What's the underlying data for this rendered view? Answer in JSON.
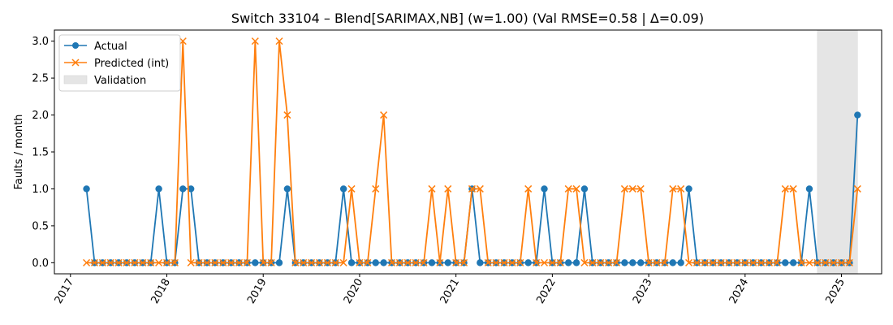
{
  "chart_data": {
    "type": "line",
    "title": "Switch 33104 – Blend[SARIMAX,NB] (w=1.00) (Val RMSE=0.58 | Δ=0.09)",
    "xlabel": "",
    "ylabel": "Faults / month",
    "xlim": [
      "2016-11",
      "2025-06"
    ],
    "ylim": [
      -0.15,
      3.15
    ],
    "x_ticks": [
      "2017",
      "2018",
      "2019",
      "2020",
      "2021",
      "2022",
      "2023",
      "2024",
      "2025"
    ],
    "y_ticks": [
      "0.0",
      "0.5",
      "1.0",
      "1.5",
      "2.0",
      "2.5",
      "3.0"
    ],
    "grid": false,
    "legend_position": "top-left",
    "x": [
      "2017-03",
      "2017-04",
      "2017-05",
      "2017-06",
      "2017-07",
      "2017-08",
      "2017-09",
      "2017-10",
      "2017-11",
      "2017-12",
      "2018-01",
      "2018-02",
      "2018-03",
      "2018-04",
      "2018-05",
      "2018-06",
      "2018-07",
      "2018-08",
      "2018-09",
      "2018-10",
      "2018-11",
      "2018-12",
      "2019-01",
      "2019-02",
      "2019-03",
      "2019-04",
      "2019-05",
      "2019-06",
      "2019-07",
      "2019-08",
      "2019-09",
      "2019-10",
      "2019-11",
      "2019-12",
      "2020-01",
      "2020-02",
      "2020-03",
      "2020-04",
      "2020-05",
      "2020-06",
      "2020-07",
      "2020-08",
      "2020-09",
      "2020-10",
      "2020-11",
      "2020-12",
      "2021-01",
      "2021-02",
      "2021-03",
      "2021-04",
      "2021-05",
      "2021-06",
      "2021-07",
      "2021-08",
      "2021-09",
      "2021-10",
      "2021-11",
      "2021-12",
      "2022-01",
      "2022-02",
      "2022-03",
      "2022-04",
      "2022-05",
      "2022-06",
      "2022-07",
      "2022-08",
      "2022-09",
      "2022-10",
      "2022-11",
      "2022-12",
      "2023-01",
      "2023-02",
      "2023-03",
      "2023-04",
      "2023-05",
      "2023-06",
      "2023-07",
      "2023-08",
      "2023-09",
      "2023-10",
      "2023-11",
      "2023-12",
      "2024-01",
      "2024-02",
      "2024-03",
      "2024-04",
      "2024-05",
      "2024-06",
      "2024-07",
      "2024-08",
      "2024-09",
      "2024-10",
      "2024-11",
      "2024-12",
      "2025-01",
      "2025-02",
      "2025-03"
    ],
    "series": [
      {
        "name": "Actual",
        "color": "#1f77b4",
        "marker": "circle",
        "values": [
          1,
          0,
          0,
          0,
          0,
          0,
          0,
          0,
          0,
          1,
          0,
          0,
          1,
          1,
          0,
          0,
          0,
          0,
          0,
          0,
          0,
          0,
          0,
          0,
          0,
          1,
          0,
          0,
          0,
          0,
          0,
          0,
          1,
          0,
          0,
          0,
          0,
          0,
          0,
          0,
          0,
          0,
          0,
          0,
          0,
          0,
          0,
          0,
          1,
          0,
          0,
          0,
          0,
          0,
          0,
          0,
          0,
          1,
          0,
          0,
          0,
          0,
          1,
          0,
          0,
          0,
          0,
          0,
          0,
          0,
          0,
          0,
          0,
          0,
          0,
          1,
          0,
          0,
          0,
          0,
          0,
          0,
          0,
          0,
          0,
          0,
          0,
          0,
          0,
          0,
          1,
          0,
          0,
          0,
          0,
          0,
          2
        ]
      },
      {
        "name": "Predicted (int)",
        "color": "#ff7f0e",
        "marker": "x",
        "values": [
          0,
          0,
          0,
          0,
          0,
          0,
          0,
          0,
          0,
          0,
          0,
          0,
          3,
          0,
          0,
          0,
          0,
          0,
          0,
          0,
          0,
          3,
          0,
          0,
          3,
          2,
          0,
          0,
          0,
          0,
          0,
          0,
          0,
          1,
          0,
          0,
          1,
          2,
          0,
          0,
          0,
          0,
          0,
          1,
          0,
          1,
          0,
          0,
          1,
          1,
          0,
          0,
          0,
          0,
          0,
          1,
          0,
          0,
          0,
          0,
          1,
          1,
          0,
          0,
          0,
          0,
          0,
          1,
          1,
          1,
          0,
          0,
          0,
          1,
          1,
          0,
          0,
          0,
          0,
          0,
          0,
          0,
          0,
          0,
          0,
          0,
          0,
          1,
          1,
          0,
          0,
          0,
          0,
          0,
          0,
          0,
          1
        ]
      }
    ],
    "validation_span": {
      "label": "Validation",
      "start": "2024-10",
      "end": "2025-03",
      "color": "#e5e5e5"
    }
  }
}
